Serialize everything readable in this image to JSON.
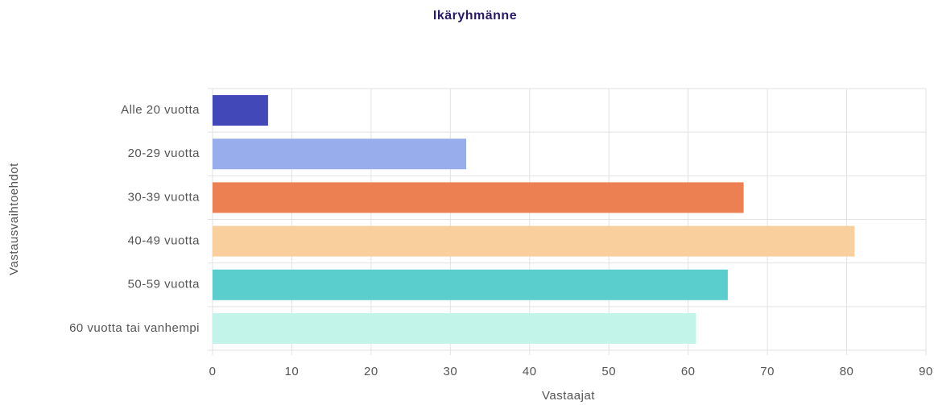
{
  "chart_data": {
    "type": "hbar",
    "title": "Ikäryhmänne",
    "categories": [
      "Alle 20 vuotta",
      "20-29 vuotta",
      "30-39 vuotta",
      "40-49 vuotta",
      "50-59 vuotta",
      "60 vuotta tai vanhempi"
    ],
    "values": [
      7,
      32,
      67,
      81,
      65,
      61
    ],
    "colors": [
      "#4348b8",
      "#98aeec",
      "#ed8052",
      "#f9cf9e",
      "#5acdcd",
      "#c2f4ea"
    ],
    "xlim": [
      0,
      90
    ],
    "xticks": [
      0,
      10,
      20,
      30,
      40,
      50,
      60,
      70,
      80,
      90
    ],
    "xlabel": "Vastaajat",
    "ylabel": "Vastausvaihtoehdot",
    "grid": true
  }
}
